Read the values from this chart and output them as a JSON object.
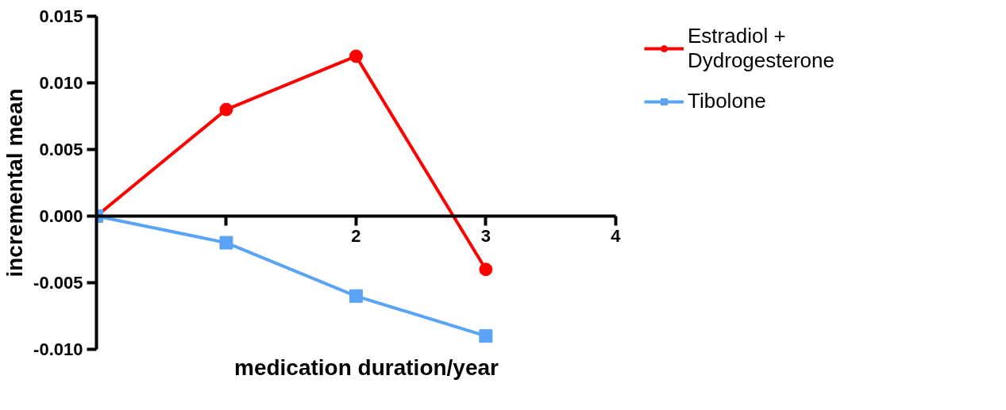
{
  "chart_data": {
    "type": "line",
    "xlabel": "medication duration/year",
    "ylabel": "incremental mean",
    "x": [
      0,
      1,
      2,
      3
    ],
    "series": [
      {
        "name": "Estradiol +\nDydrogesterone",
        "color": "#ff0000",
        "values": [
          0,
          0.008,
          0.012,
          -0.004
        ],
        "marker": "circle"
      },
      {
        "name": "Tibolone",
        "color": "#5ba4f5",
        "values": [
          0,
          -0.002,
          -0.006,
          -0.009
        ],
        "marker": "square"
      }
    ],
    "xlim": [
      0,
      4
    ],
    "xticks": [
      {
        "value": 1,
        "label": null
      },
      2,
      3,
      4
    ],
    "ylim": [
      -0.01,
      0.015
    ],
    "yticks": [
      {
        "value": -0.01,
        "label": "-0.010"
      },
      {
        "value": -0.005,
        "label": "-0.005"
      },
      {
        "value": 0,
        "label": "0.000"
      },
      {
        "value": 0.005,
        "label": "0.005"
      },
      {
        "value": 0.01,
        "label": "0.010"
      },
      {
        "value": 0.015,
        "label": "0.015"
      }
    ],
    "grid": false,
    "legend": "right",
    "line_style": "solid"
  }
}
